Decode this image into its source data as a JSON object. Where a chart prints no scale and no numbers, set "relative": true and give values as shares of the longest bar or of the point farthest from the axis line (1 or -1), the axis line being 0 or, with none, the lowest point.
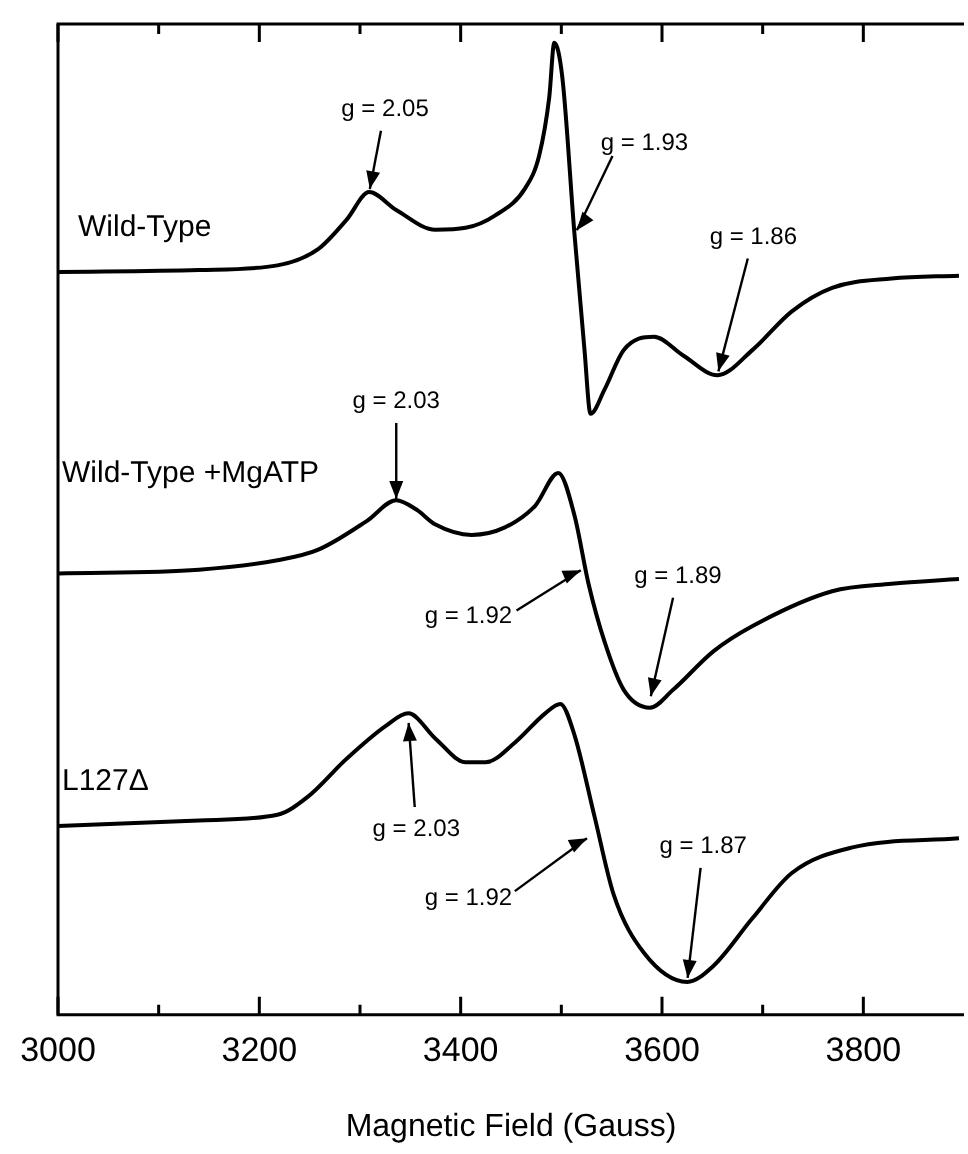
{
  "chart_data": {
    "type": "line",
    "relative": true,
    "xlabel": "Magnetic Field (Gauss)",
    "xlim": [
      3000,
      3900
    ],
    "xticks": [
      3000,
      {
        "value": 3100,
        "label": null
      },
      3200,
      {
        "value": 3300,
        "label": null
      },
      3400,
      {
        "value": 3500,
        "label": null
      },
      3600,
      {
        "value": 3700,
        "label": null
      },
      3800
    ],
    "marker": "none",
    "line_style": "solid",
    "grid": false,
    "series": [
      {
        "name": "Wild-Type",
        "color": "#000000",
        "x": [
          3000,
          3140,
          3218,
          3258,
          3287,
          3309,
          3336,
          3375,
          3405,
          3434,
          3464,
          3478,
          3488,
          3493,
          3501,
          3513,
          3523,
          3529,
          3543,
          3562,
          3592,
          3621,
          3655,
          3690,
          3729,
          3769,
          3828,
          3895
        ],
        "values": [
          0.756,
          0.758,
          0.763,
          0.78,
          0.812,
          0.841,
          0.822,
          0.801,
          0.803,
          0.816,
          0.845,
          0.88,
          0.942,
          1,
          0.963,
          0.797,
          0.673,
          0.605,
          0.631,
          0.673,
          0.687,
          0.667,
          0.646,
          0.673,
          0.714,
          0.739,
          0.749,
          0.752
        ]
      },
      {
        "name": "Wild-Type +MgATP",
        "color": "#000000",
        "x": [
          3000,
          3140,
          3218,
          3258,
          3307,
          3336,
          3356,
          3375,
          3411,
          3444,
          3474,
          3497,
          3513,
          3527,
          3543,
          3562,
          3588,
          3611,
          3651,
          3690,
          3769,
          3828,
          3895
        ],
        "values": [
          0.435,
          0.439,
          0.449,
          0.46,
          0.491,
          0.513,
          0.503,
          0.487,
          0.476,
          0.484,
          0.507,
          0.542,
          0.497,
          0.424,
          0.362,
          0.311,
          0.292,
          0.311,
          0.352,
          0.379,
          0.416,
          0.424,
          0.429
        ]
      },
      {
        "name": "L127Δ",
        "color": "#000000",
        "x": [
          3000,
          3140,
          3218,
          3248,
          3287,
          3326,
          3348,
          3375,
          3405,
          3425,
          3454,
          3484,
          3499,
          3513,
          3533,
          3552,
          3582,
          3625,
          3651,
          3690,
          3729,
          3788,
          3895
        ],
        "values": [
          0.166,
          0.172,
          0.178,
          0.197,
          0.238,
          0.273,
          0.286,
          0.259,
          0.234,
          0.234,
          0.255,
          0.286,
          0.296,
          0.263,
          0.176,
          0.093,
          0.031,
          0,
          0.017,
          0.068,
          0.116,
          0.143,
          0.153
        ]
      }
    ],
    "annotations": [
      {
        "text": "g = 2.05",
        "x": 3309,
        "y": 0.84
      },
      {
        "text": "g = 1.93",
        "x": 3513,
        "y": 0.797
      },
      {
        "text": "g = 1.86",
        "x": 3655,
        "y": 0.646
      },
      {
        "text": "g = 2.03",
        "x": 3336,
        "y": 0.51
      },
      {
        "text": "g = 1.92",
        "x": 3523,
        "y": 0.44
      },
      {
        "text": "g = 1.89",
        "x": 3588,
        "y": 0.3
      },
      {
        "text": "g = 2.03",
        "x": 3348,
        "y": 0.28
      },
      {
        "text": "g = 1.92",
        "x": 3529,
        "y": 0.155
      },
      {
        "text": "g = 1.87",
        "x": 3625,
        "y": 0
      }
    ]
  }
}
